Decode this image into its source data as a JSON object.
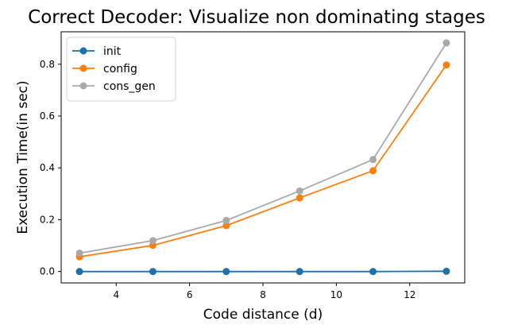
{
  "chart_data": {
    "type": "line",
    "title": "Correct Decoder: Visualize non dominating stages",
    "xlabel": "Code distance (d)",
    "ylabel": "Execution Time(in sec)",
    "x": [
      3,
      5,
      7,
      9,
      11,
      13
    ],
    "xlim": [
      2.5,
      13.5
    ],
    "ylim": [
      -0.044,
      0.925
    ],
    "xticks": [
      "4",
      "6",
      "8",
      "10",
      "12"
    ],
    "yticks": [
      "0.0",
      "0.2",
      "0.4",
      "0.6",
      "0.8"
    ],
    "legend_position": "top-left",
    "grid": false,
    "series": [
      {
        "name": "init",
        "color": "#1f6fa8",
        "values": [
          0.0,
          0.0,
          0.0,
          0.0,
          0.0,
          0.001
        ]
      },
      {
        "name": "config",
        "color": "#ff7f0e",
        "values": [
          0.057,
          0.101,
          0.177,
          0.284,
          0.389,
          0.797
        ]
      },
      {
        "name": "cons_gen",
        "color": "#a9a9a9",
        "values": [
          0.071,
          0.119,
          0.197,
          0.311,
          0.432,
          0.882
        ]
      }
    ]
  }
}
